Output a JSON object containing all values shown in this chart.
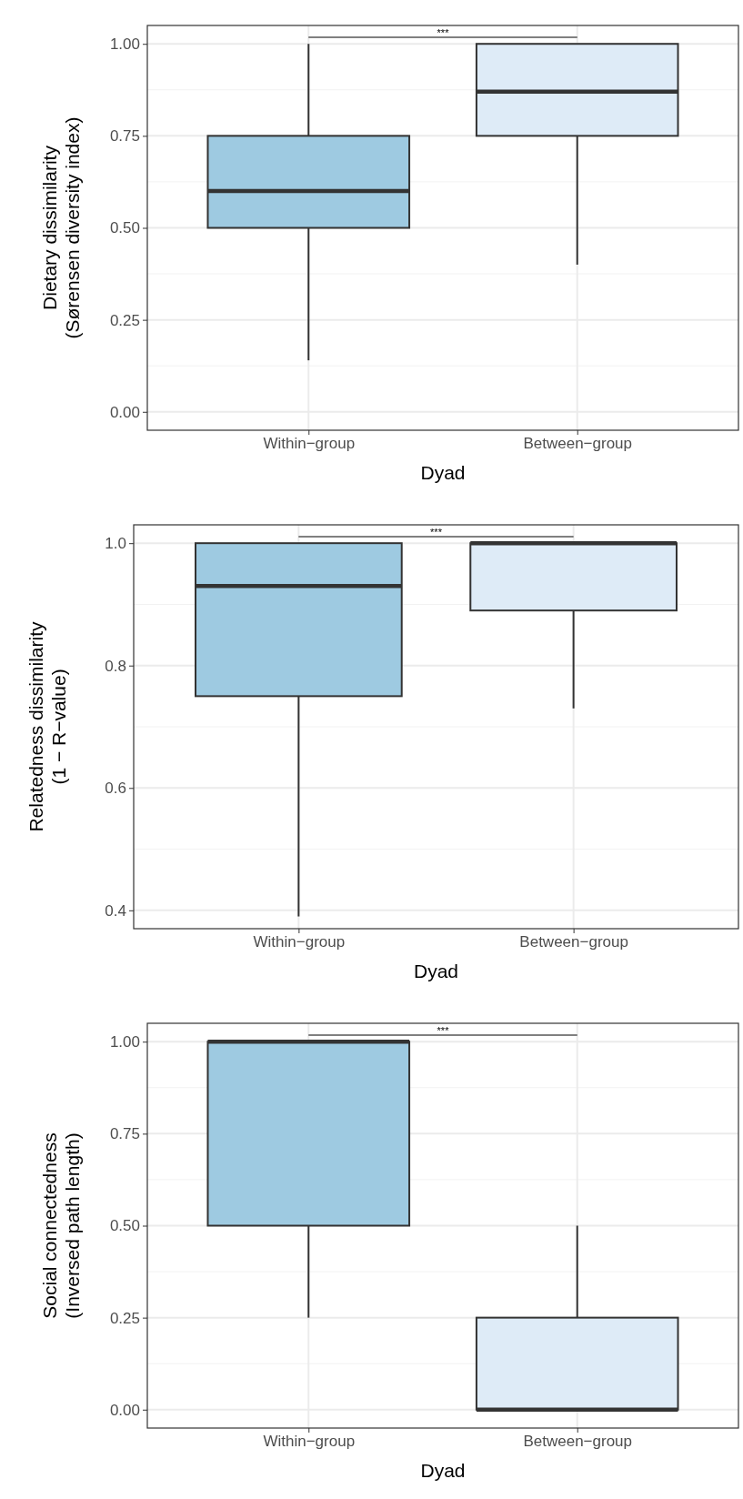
{
  "chart_data": [
    {
      "type": "box",
      "xlabel": "Dyad",
      "ylabel": "Dietary dissimilarity\n(Sørensen diversity index)",
      "categories": [
        "Within−group",
        "Between−group"
      ],
      "colors": [
        "#9ecae1",
        "#deebf7"
      ],
      "boxes": [
        {
          "low": 0.14,
          "q1": 0.5,
          "median": 0.6,
          "q3": 0.75,
          "high": 1.0
        },
        {
          "low": 0.4,
          "q1": 0.75,
          "median": 0.87,
          "q3": 1.0,
          "high": 1.0
        }
      ],
      "ylim": [
        -0.05,
        1.05
      ],
      "yticks": [
        {
          "value": 0,
          "label": "0.00"
        },
        {
          "value": 0.25,
          "label": "0.25"
        },
        {
          "value": 0.5,
          "label": "0.50"
        },
        {
          "value": 0.75,
          "label": "0.75"
        },
        {
          "value": 1,
          "label": "1.00"
        }
      ],
      "grid": true,
      "annotations": [
        "***"
      ]
    },
    {
      "type": "box",
      "xlabel": "Dyad",
      "ylabel": "Relatedness dissimilarity\n(1 − R−value)",
      "categories": [
        "Within−group",
        "Between−group"
      ],
      "colors": [
        "#9ecae1",
        "#deebf7"
      ],
      "boxes": [
        {
          "low": 0.39,
          "q1": 0.75,
          "median": 0.93,
          "q3": 1.0,
          "high": 1.0
        },
        {
          "low": 0.73,
          "q1": 0.89,
          "median": 1.0,
          "q3": 1.0,
          "high": 1.0
        }
      ],
      "ylim": [
        0.37,
        1.03
      ],
      "yticks": [
        {
          "value": 0.4,
          "label": "0.4"
        },
        {
          "value": 0.6,
          "label": "0.6"
        },
        {
          "value": 0.8,
          "label": "0.8"
        },
        {
          "value": 1,
          "label": "1.0"
        }
      ],
      "grid": true,
      "annotations": [
        "***"
      ]
    },
    {
      "type": "box",
      "xlabel": "Dyad",
      "ylabel": "Social connectedness\n(Inversed path length)",
      "categories": [
        "Within−group",
        "Between−group"
      ],
      "colors": [
        "#9ecae1",
        "#deebf7"
      ],
      "boxes": [
        {
          "low": 0.25,
          "q1": 0.5,
          "median": 1.0,
          "q3": 1.0,
          "high": 1.0
        },
        {
          "low": 0,
          "q1": 0,
          "median": 0,
          "q3": 0.25,
          "high": 0.5
        }
      ],
      "ylim": [
        -0.05,
        1.05
      ],
      "yticks": [
        {
          "value": 0,
          "label": "0.00"
        },
        {
          "value": 0.25,
          "label": "0.25"
        },
        {
          "value": 0.5,
          "label": "0.50"
        },
        {
          "value": 0.75,
          "label": "0.75"
        },
        {
          "value": 1,
          "label": "1.00"
        }
      ],
      "grid": true,
      "annotations": [
        "***"
      ]
    }
  ]
}
